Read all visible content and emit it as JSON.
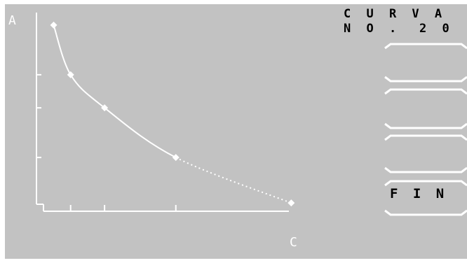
{
  "chart_data": {
    "type": "line",
    "xlabel": "C",
    "ylabel": "A",
    "points": [
      {
        "x": 1.0,
        "y": 10.0
      },
      {
        "x": 1.5,
        "y": 7.6
      },
      {
        "x": 2.5,
        "y": 6.0
      },
      {
        "x": 4.6,
        "y": 3.6
      },
      {
        "x": 8.0,
        "y": 1.4
      }
    ],
    "xticks": [
      1.5,
      2.5,
      4.6
    ],
    "yticks": [
      7.6,
      6.0,
      3.6
    ],
    "xlim": [
      0.7,
      8.2
    ],
    "ylim": [
      1.0,
      10.2
    ],
    "curve_segments": [
      {
        "from": 0,
        "to": 1,
        "style": "solid"
      },
      {
        "from": 1,
        "to": 2,
        "style": "solid"
      },
      {
        "from": 2,
        "to": 3,
        "style": "solid"
      },
      {
        "from": 3,
        "to": 4,
        "style": "dotted"
      }
    ],
    "colors": {
      "line": "#ffffff",
      "axis": "#ffffff"
    }
  },
  "header": {
    "curve_label": "C U R V A",
    "number_label": "N O .",
    "number_value": "2 0"
  },
  "softkeys": [
    {
      "label": ""
    },
    {
      "label": ""
    },
    {
      "label": ""
    },
    {
      "label": "F I N"
    }
  ],
  "colors": {
    "background": "#c2c2c2",
    "foreground": "#ffffff",
    "text": "#000000"
  }
}
